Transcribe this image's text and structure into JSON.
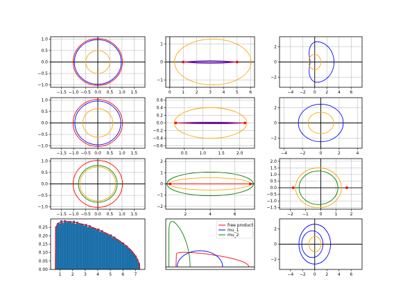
{
  "colors": {
    "blue": "#0000ff",
    "red": "#ff0000",
    "orange": "#ffa500",
    "green": "#008000",
    "hist": "#1f77b4",
    "grid": "#b0b0b0"
  },
  "chart_data": [
    {
      "type": "line",
      "name": "r1c1",
      "xlim": [
        -1.95,
        1.95
      ],
      "ylim": [
        -1.1,
        1.1
      ],
      "xticks": [
        -1.5,
        -1.0,
        -0.5,
        0.0,
        0.5,
        1.0,
        1.5
      ],
      "xtick_labels": [
        "−1.5",
        "−1.0",
        "−0.5",
        "0.0",
        "0.5",
        "1.0",
        "1.5"
      ],
      "yticks": [
        -1.0,
        -0.5,
        0.0,
        0.5,
        1.0
      ],
      "ytick_labels": [
        "−1.0",
        "−0.5",
        "0.0",
        "0.5",
        "1.0"
      ],
      "grid": true,
      "axis_lines": true,
      "aspect_equal": true,
      "curves": [
        {
          "shape": "ellipse",
          "cx": 0,
          "cy": 0,
          "rx": 1.02,
          "ry": 1.02,
          "color": "red"
        },
        {
          "shape": "ellipse",
          "cx": 0,
          "cy": 0,
          "rx": 0.97,
          "ry": 0.97,
          "color": "blue"
        },
        {
          "shape": "ellipse",
          "cx": 0,
          "cy": 0,
          "rx": 0.5,
          "ry": 0.5,
          "color": "orange"
        }
      ]
    },
    {
      "type": "line",
      "name": "r1c2",
      "xlim": [
        -0.3,
        6.3
      ],
      "ylim": [
        -1.4,
        1.4
      ],
      "xticks": [
        0,
        1,
        2,
        3,
        4,
        5,
        6
      ],
      "xtick_labels": [
        "0",
        "1",
        "2",
        "3",
        "4",
        "5",
        "6"
      ],
      "yticks": [
        -1,
        0,
        1
      ],
      "ytick_labels": [
        "−1",
        "0",
        "1"
      ],
      "grid": true,
      "axis_lines": true,
      "curves": [
        {
          "shape": "ellipse",
          "cx": 3.2,
          "cy": 0,
          "rx": 2.85,
          "ry": 1.27,
          "color": "orange"
        },
        {
          "shape": "lens",
          "x1": 1.0,
          "x2": 5.0,
          "h": 0.07,
          "color": "blue"
        },
        {
          "shape": "segment",
          "x1": 1.0,
          "x2": 5.0,
          "color": "red"
        }
      ],
      "points": [
        {
          "x": 1.0,
          "y": 0,
          "color": "red"
        },
        {
          "x": 5.0,
          "y": 0,
          "color": "red"
        }
      ]
    },
    {
      "type": "line",
      "name": "r1c3",
      "xlim": [
        -5.8,
        7.8
      ],
      "ylim": [
        -3.3,
        3.3
      ],
      "xticks": [
        -4,
        -2,
        0,
        2,
        4,
        6
      ],
      "xtick_labels": [
        "−4",
        "−2",
        "0",
        "2",
        "4",
        "6"
      ],
      "yticks": [
        -2,
        0,
        2
      ],
      "ytick_labels": [
        "−2",
        "0",
        "2"
      ],
      "grid": true,
      "axis_lines": true,
      "curves": [
        {
          "shape": "cardioid",
          "cx": 0.3,
          "cy": 0,
          "r": 2.3,
          "dent": 0.35,
          "color": "blue"
        },
        {
          "shape": "ellipse",
          "cx": 0,
          "cy": 0,
          "rx": 1.0,
          "ry": 1.0,
          "color": "orange"
        }
      ]
    },
    {
      "type": "line",
      "name": "r2c1",
      "xlim": [
        -1.95,
        1.95
      ],
      "ylim": [
        -1.1,
        1.1
      ],
      "xticks": [
        -1.5,
        -1.0,
        -0.5,
        0.0,
        0.5,
        1.0,
        1.5
      ],
      "xtick_labels": [
        "−1.5",
        "−1.0",
        "−0.5",
        "0.0",
        "0.5",
        "1.0",
        "1.5"
      ],
      "yticks": [
        -1.0,
        -0.5,
        0.0,
        0.5,
        1.0
      ],
      "ytick_labels": [
        "−1.0",
        "−0.5",
        "0.0",
        "0.5",
        "1.0"
      ],
      "grid": true,
      "axis_lines": true,
      "aspect_equal": true,
      "curves": [
        {
          "shape": "ellipse",
          "cx": 0,
          "cy": 0,
          "rx": 1.02,
          "ry": 1.02,
          "color": "red"
        },
        {
          "shape": "ellipse",
          "cx": 0,
          "cy": 0,
          "rx": 0.95,
          "ry": 0.95,
          "color": "blue"
        },
        {
          "shape": "ellipse",
          "cx": 0,
          "cy": 0,
          "rx": 0.62,
          "ry": 0.62,
          "color": "orange"
        }
      ]
    },
    {
      "type": "line",
      "name": "r2c2",
      "xlim": [
        0.0,
        2.4
      ],
      "ylim": [
        -0.66,
        0.66
      ],
      "xticks": [
        0.5,
        1.0,
        1.5,
        2.0
      ],
      "xtick_labels": [
        "0.5",
        "1.0",
        "1.5",
        "2.0"
      ],
      "yticks": [
        -0.6,
        -0.4,
        -0.2,
        0.0,
        0.2,
        0.4,
        0.6
      ],
      "ytick_labels": [
        "−0.6",
        "−0.4",
        "−0.2",
        "0.0",
        "0.2",
        "0.4",
        "0.6"
      ],
      "grid": true,
      "axis_lines": false,
      "curves": [
        {
          "shape": "ellipse",
          "cx": 1.21,
          "cy": 0,
          "rx": 0.98,
          "ry": 0.4,
          "color": "orange"
        },
        {
          "shape": "lens",
          "x1": 0.27,
          "x2": 2.14,
          "h": 0.02,
          "color": "blue"
        },
        {
          "shape": "segment",
          "x1": 0.27,
          "x2": 2.14,
          "color": "red"
        }
      ],
      "points": [
        {
          "x": 0.27,
          "y": 0,
          "color": "red"
        },
        {
          "x": 2.14,
          "y": 0,
          "color": "red"
        }
      ]
    },
    {
      "type": "line",
      "name": "r2c3",
      "xlim": [
        -4.5,
        4.5
      ],
      "ylim": [
        -3.3,
        3.3
      ],
      "xticks": [
        -4,
        -2,
        0,
        2,
        4
      ],
      "xtick_labels": [
        "−4",
        "−2",
        "0",
        "2",
        "4"
      ],
      "yticks": [
        -2,
        0,
        2
      ],
      "ytick_labels": [
        "−2",
        "0",
        "2"
      ],
      "grid": true,
      "axis_lines": true,
      "curves": [
        {
          "shape": "ellipse",
          "cx": 0,
          "cy": 0,
          "rx": 2.45,
          "ry": 2.45,
          "color": "blue"
        },
        {
          "shape": "ellipse",
          "cx": 0,
          "cy": 0,
          "rx": 1.4,
          "ry": 1.4,
          "color": "orange"
        }
      ]
    },
    {
      "type": "line",
      "name": "r3c1",
      "xlim": [
        -1.95,
        1.95
      ],
      "ylim": [
        -1.1,
        1.1
      ],
      "xticks": [
        -1.5,
        -1.0,
        -0.5,
        0.0,
        0.5,
        1.0,
        1.5
      ],
      "xtick_labels": [
        "−1.5",
        "−1.0",
        "−0.5",
        "0.0",
        "0.5",
        "1.0",
        "1.5"
      ],
      "yticks": [
        -1.0,
        -0.5,
        0.0,
        0.5,
        1.0
      ],
      "ytick_labels": [
        "−1.0",
        "−0.5",
        "0.0",
        "0.5",
        "1.0"
      ],
      "grid": true,
      "axis_lines": true,
      "aspect_equal": true,
      "curves": [
        {
          "shape": "ellipse",
          "cx": 0,
          "cy": 0,
          "rx": 1.02,
          "ry": 1.02,
          "color": "red"
        },
        {
          "shape": "ellipse",
          "cx": 0,
          "cy": 0,
          "rx": 0.8,
          "ry": 0.8,
          "color": "green"
        },
        {
          "shape": "ellipse",
          "cx": 0,
          "cy": 0,
          "rx": 0.74,
          "ry": 0.74,
          "color": "orange"
        }
      ]
    },
    {
      "type": "line",
      "name": "r3c2",
      "xlim": [
        0.4,
        7.6
      ],
      "ylim": [
        -2.25,
        2.25
      ],
      "xticks": [
        2,
        4,
        6
      ],
      "xtick_labels": [
        "2",
        "4",
        "6"
      ],
      "yticks": [
        -2,
        -1,
        0,
        1,
        2
      ],
      "ytick_labels": [
        "−2",
        "−1",
        "0",
        "1",
        "2"
      ],
      "grid": true,
      "axis_lines": true,
      "curves": [
        {
          "shape": "ellipse",
          "cx": 4.0,
          "cy": 0,
          "rx": 3.5,
          "ry": 1.05,
          "color": "green"
        },
        {
          "shape": "ellipse",
          "cx": 4.0,
          "cy": 0,
          "rx": 3.3,
          "ry": 0.55,
          "color": "orange"
        },
        {
          "shape": "segment",
          "x1": 0.75,
          "x2": 7.25,
          "color": "red"
        }
      ],
      "points": [
        {
          "x": 0.75,
          "y": 0,
          "color": "red"
        },
        {
          "x": 7.25,
          "y": 0,
          "color": "red"
        }
      ]
    },
    {
      "type": "line",
      "name": "r3c3",
      "xlim": [
        -2.7,
        2.7
      ],
      "ylim": [
        -1.62,
        2.2
      ],
      "xticks": [
        -2,
        -1,
        0,
        1,
        2
      ],
      "xtick_labels": [
        "−2",
        "−1",
        "0",
        "1",
        "2"
      ],
      "yticks": [
        -1.5,
        -1.0,
        -0.5,
        0.0,
        0.5,
        1.0,
        1.5,
        2.0
      ],
      "ytick_labels": [
        "−1.5",
        "−1.0",
        "−0.5",
        "0.0",
        "0.5",
        "1.0",
        "1.5",
        "2.0"
      ],
      "grid": true,
      "axis_lines": true,
      "curves": [
        {
          "shape": "ellipse",
          "cx": -0.15,
          "cy": 0,
          "rx": 1.5,
          "ry": 1.5,
          "color": "orange"
        },
        {
          "shape": "ellipse",
          "cx": -0.15,
          "cy": 0,
          "rx": 1.27,
          "ry": 1.27,
          "color": "green"
        }
      ],
      "points": [
        {
          "x": -1.8,
          "y": 0,
          "color": "red"
        },
        {
          "x": 1.7,
          "y": 0,
          "color": "red"
        }
      ]
    },
    {
      "type": "bar",
      "name": "r4c1",
      "xlim": [
        0.25,
        7.75
      ],
      "ylim": [
        0,
        0.3
      ],
      "xticks": [
        1,
        2,
        3,
        4,
        5,
        6,
        7
      ],
      "xtick_labels": [
        "1",
        "2",
        "3",
        "4",
        "5",
        "6",
        "7"
      ],
      "yticks": [
        0.0,
        0.05,
        0.1,
        0.15,
        0.2,
        0.25
      ],
      "ytick_labels": [
        "0.00",
        "0.05",
        "0.10",
        "0.15",
        "0.20",
        "0.25"
      ],
      "grid": false,
      "density": {
        "a": 0.62,
        "b": 7.35,
        "peak_x": 1.45,
        "peak_y": 0.285,
        "color": "red"
      },
      "hist_bins": 48
    },
    {
      "type": "line",
      "name": "r4c2",
      "xlim": [
        0.0,
        7.8
      ],
      "ylim": [
        -0.05,
        0.95
      ],
      "xticks": [],
      "xtick_labels": [],
      "yticks": [],
      "ytick_labels": [],
      "grid": false,
      "legend": {
        "placement": "upper right",
        "entries": [
          {
            "label": "free product",
            "color": "red"
          },
          {
            "label": "mu_1",
            "color": "blue"
          },
          {
            "label": "mu_2",
            "color": "green"
          }
        ]
      },
      "series": [
        {
          "name": "free product",
          "color": "red",
          "a": 0.9,
          "b": 7.3,
          "peak_x": 1.6,
          "peak_y": 0.29
        },
        {
          "name": "mu_1",
          "color": "blue",
          "a": 1.0,
          "b": 5.0,
          "peak_x": 3.0,
          "peak_y": 0.32,
          "shape": "semicircle"
        },
        {
          "name": "mu_2",
          "color": "green",
          "a": 0.27,
          "b": 2.14,
          "peak_x": 0.55,
          "peak_y": 0.9
        }
      ]
    },
    {
      "type": "line",
      "name": "r4c3",
      "xlim": [
        -5.8,
        7.8
      ],
      "ylim": [
        -3.3,
        3.3
      ],
      "xticks": [
        -4,
        -2,
        0,
        2,
        4,
        6
      ],
      "xtick_labels": [
        "−4",
        "−2",
        "0",
        "2",
        "4",
        "6"
      ],
      "yticks": [
        -2,
        0,
        2
      ],
      "ytick_labels": [
        "−2",
        "0",
        "2"
      ],
      "grid": false,
      "axis_lines": true,
      "curves": [
        {
          "shape": "ellipse",
          "cx": 0.0,
          "cy": 0,
          "rx": 2.6,
          "ry": 2.6,
          "color": "blue"
        },
        {
          "shape": "ellipse",
          "cx": -0.4,
          "cy": 0,
          "rx": 1.75,
          "ry": 1.75,
          "color": "blue"
        },
        {
          "shape": "ellipse",
          "cx": 0.05,
          "cy": 0,
          "rx": 1.0,
          "ry": 1.0,
          "color": "orange"
        }
      ]
    }
  ]
}
